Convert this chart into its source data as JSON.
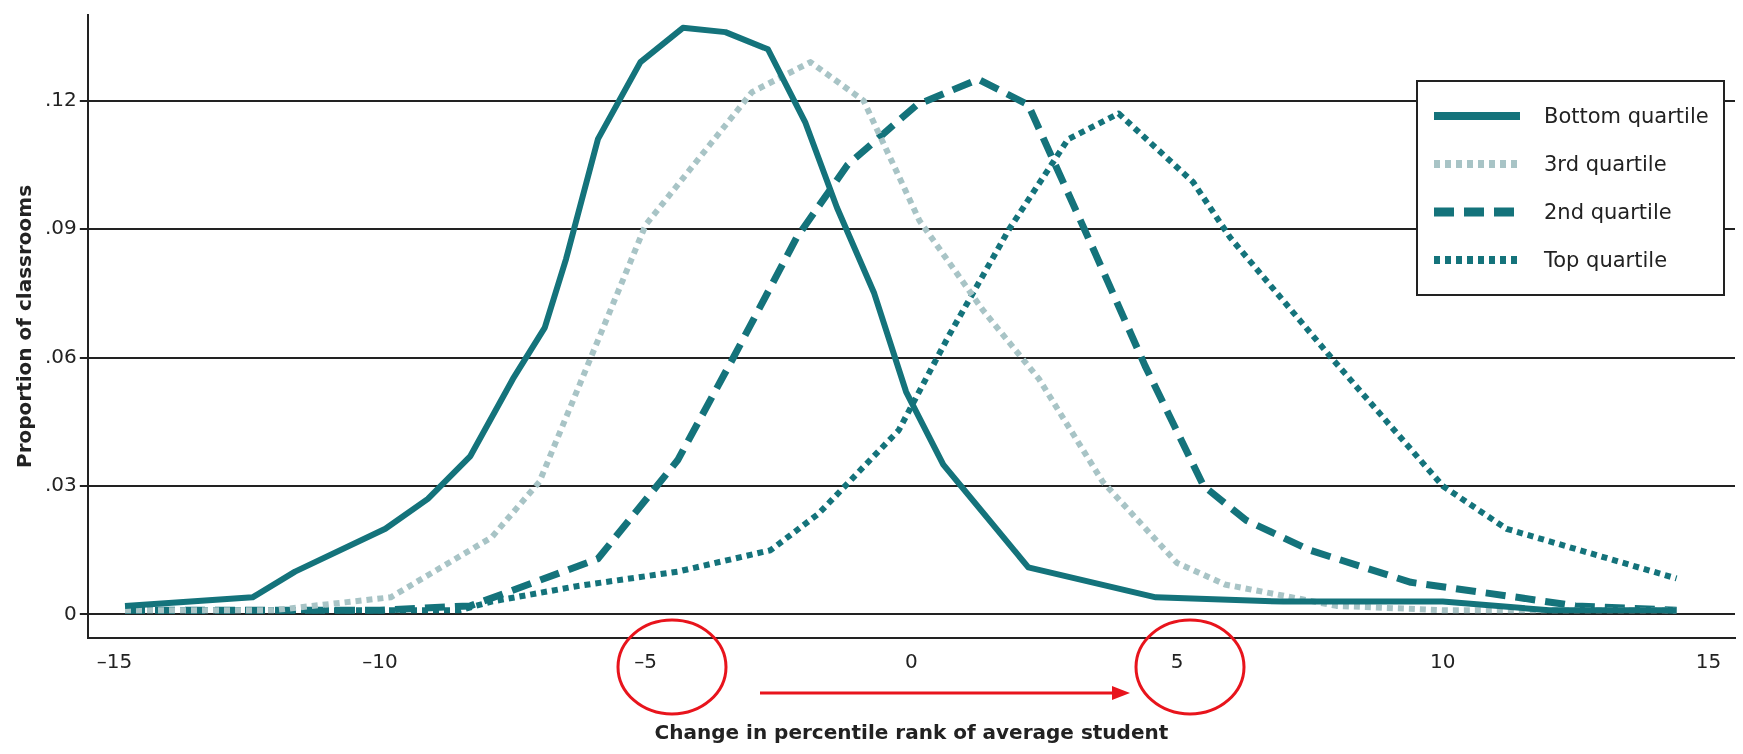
{
  "chart_data": {
    "type": "line",
    "xlabel": "Change in percentile rank of average student",
    "ylabel": "Proportion of classrooms",
    "xlim": [
      -15.5,
      15.5
    ],
    "xticks": [
      {
        "value": -15,
        "label": "–15"
      },
      {
        "value": -10,
        "label": "–10"
      },
      {
        "value": -5,
        "label": "–5"
      },
      0,
      5,
      10,
      15
    ],
    "ylim": [
      -0.0055,
      0.14
    ],
    "yticks": [
      0,
      {
        "value": 0.03,
        "label": ".03"
      },
      {
        "value": 0.06,
        "label": ".06"
      },
      {
        "value": 0.09,
        "label": ".09"
      },
      {
        "value": 0.12,
        "label": ".12"
      }
    ],
    "grid": "y",
    "legend": "top right",
    "marker": "none",
    "series": [
      {
        "name": "Bottom quartile",
        "color": "#14737b",
        "line_style": "solid",
        "x": [
          -14.8,
          -12.4,
          -11.6,
          -9.9,
          -9.1,
          -8.3,
          -7.5,
          -6.9,
          -6.5,
          -5.9,
          -5.1,
          -4.3,
          -3.5,
          -2.7,
          -2.0,
          -1.4,
          -0.7,
          -0.1,
          0.6,
          2.2,
          4.6,
          7.0,
          8.0,
          10.0,
          12.0,
          14.4
        ],
        "values": [
          0.002,
          0.004,
          0.01,
          0.02,
          0.027,
          0.037,
          0.055,
          0.067,
          0.083,
          0.111,
          0.129,
          0.137,
          0.136,
          0.132,
          0.115,
          0.095,
          0.075,
          0.052,
          0.035,
          0.011,
          0.004,
          0.003,
          0.003,
          0.003,
          0.001,
          0.001
        ]
      },
      {
        "name": "3rd quartile",
        "color": "#a8c4c6",
        "line_style": "dotted",
        "x": [
          -14.8,
          -12.0,
          -9.8,
          -7.9,
          -7.0,
          -6.1,
          -5.0,
          -3.0,
          -1.9,
          -0.9,
          0.15,
          1.35,
          2.4,
          3.6,
          5.0,
          5.9,
          8.0,
          10.0,
          14.4
        ],
        "values": [
          0.001,
          0.001,
          0.004,
          0.018,
          0.031,
          0.058,
          0.091,
          0.122,
          0.129,
          0.12,
          0.092,
          0.071,
          0.055,
          0.031,
          0.012,
          0.007,
          0.002,
          0.001,
          0.001
        ]
      },
      {
        "name": "2nd quartile",
        "color": "#14737b",
        "line_style": "dashed",
        "x": [
          -14.8,
          -12.0,
          -10.0,
          -8.3,
          -5.9,
          -4.4,
          -3.35,
          -2.16,
          -1.2,
          0.1,
          1.26,
          2.2,
          3.4,
          4.4,
          5.5,
          6.3,
          7.5,
          9.4,
          11.4,
          12.5,
          14.4
        ],
        "values": [
          0.001,
          0.001,
          0.001,
          0.002,
          0.013,
          0.036,
          0.06,
          0.088,
          0.105,
          0.119,
          0.125,
          0.119,
          0.086,
          0.058,
          0.03,
          0.022,
          0.015,
          0.0075,
          0.004,
          0.002,
          0.001
        ]
      },
      {
        "name": "Top quartile",
        "color": "#14737b",
        "line_style": "dotted",
        "x": [
          -14.8,
          -12.0,
          -10.0,
          -8.5,
          -7.9,
          -6.3,
          -4.4,
          -2.65,
          -1.75,
          -0.24,
          0.7,
          1.84,
          2.95,
          3.9,
          5.3,
          6.0,
          7.9,
          10.0,
          11.2,
          14.4
        ],
        "values": [
          0.001,
          0.001,
          0.001,
          0.001,
          0.003,
          0.0066,
          0.01,
          0.015,
          0.0235,
          0.043,
          0.065,
          0.09,
          0.111,
          0.117,
          0.101,
          0.088,
          0.06,
          0.03,
          0.02,
          0.0084
        ]
      }
    ]
  }
}
